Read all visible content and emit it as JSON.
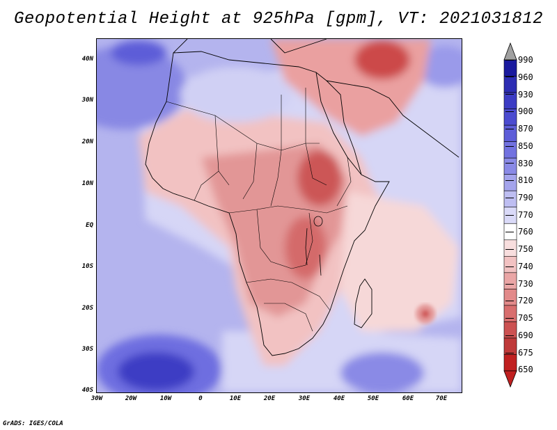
{
  "title": "Geopotential Height at 925hPa [gpm], VT: 2021031812",
  "credit": "GrADS: IGES/COLA",
  "lat_labels": [
    "40N",
    "30N",
    "20N",
    "10N",
    "EQ",
    "10S",
    "20S",
    "30S",
    "40S"
  ],
  "lon_labels": [
    "30W",
    "20W",
    "10W",
    "0",
    "10E",
    "20E",
    "30E",
    "40E",
    "50E",
    "60E",
    "70E"
  ],
  "colorbar": {
    "levels": [
      "990",
      "960",
      "930",
      "900",
      "870",
      "850",
      "830",
      "810",
      "790",
      "770",
      "760",
      "750",
      "740",
      "730",
      "720",
      "705",
      "690",
      "675",
      "650"
    ],
    "colors": [
      "#1a1a9e",
      "#2d2db3",
      "#3c3cc4",
      "#4b4bd0",
      "#5d5dd8",
      "#7272e0",
      "#8a8ae6",
      "#a4a4ec",
      "#bebef2",
      "#dadaf8",
      "#ffffff",
      "#f8dede",
      "#f2c2c2",
      "#eaa6a6",
      "#e28a8a",
      "#d86e6e",
      "#cc5252",
      "#bf3a3a",
      "#c02020"
    ],
    "top_arrow_color": "#a0a0a0",
    "bottom_arrow_color": "#c02020"
  }
}
